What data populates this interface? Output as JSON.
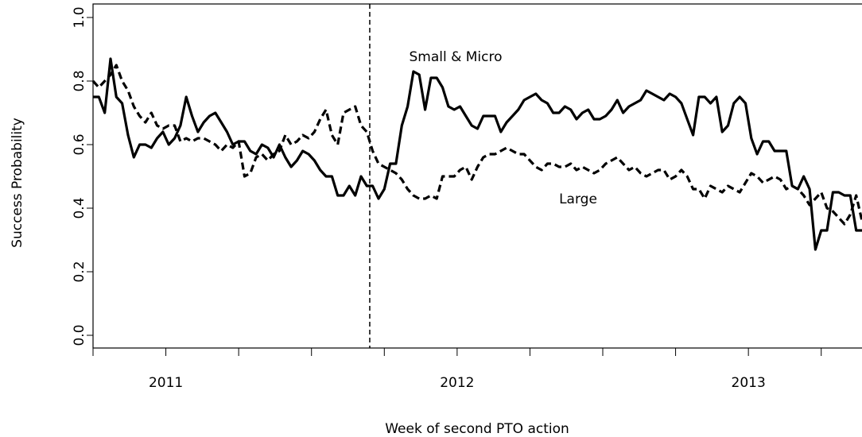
{
  "chart_data": {
    "type": "line",
    "ylabel": "Success Probability",
    "xlabel": "Week of second PTO action",
    "xlim": [
      2010.75,
      2013.39
    ],
    "xticks": [
      2011,
      2012,
      2013
    ],
    "xminorticks": [
      2010.75,
      2011.25,
      2011.5,
      2011.75,
      2012.25,
      2012.5,
      2012.75,
      2013.25
    ],
    "ylim": [
      0,
      1
    ],
    "yticks": [
      {
        "value": 0,
        "label": "0.0"
      },
      {
        "value": 0.2,
        "label": "0.2"
      },
      {
        "value": 0.4,
        "label": "0.4"
      },
      {
        "value": 0.6,
        "label": "0.6"
      },
      {
        "value": 0.8,
        "label": "0.8"
      },
      {
        "value": 1,
        "label": "1.0"
      }
    ],
    "vline": 2011.7,
    "annotations": [
      "Small & Micro",
      "Large"
    ],
    "x": [
      2010.75,
      2010.77,
      2010.79,
      2010.81,
      2010.83,
      2010.85,
      2010.87,
      2010.89,
      2010.91,
      2010.93,
      2010.95,
      2010.97,
      2010.99,
      2011.01,
      2011.03,
      2011.05,
      2011.07,
      2011.09,
      2011.11,
      2011.13,
      2011.15,
      2011.17,
      2011.19,
      2011.21,
      2011.23,
      2011.25,
      2011.27,
      2011.29,
      2011.31,
      2011.33,
      2011.35,
      2011.37,
      2011.39,
      2011.41,
      2011.43,
      2011.45,
      2011.47,
      2011.49,
      2011.51,
      2011.53,
      2011.55,
      2011.57,
      2011.59,
      2011.61,
      2011.63,
      2011.65,
      2011.67,
      2011.69,
      2011.71,
      2011.73,
      2011.75,
      2011.77,
      2011.79,
      2011.81,
      2011.83,
      2011.85,
      2011.87,
      2011.89,
      2011.91,
      2011.93,
      2011.95,
      2011.97,
      2011.99,
      2012.01,
      2012.03,
      2012.05,
      2012.07,
      2012.09,
      2012.11,
      2012.13,
      2012.15,
      2012.17,
      2012.19,
      2012.21,
      2012.23,
      2012.25,
      2012.27,
      2012.29,
      2012.31,
      2012.33,
      2012.35,
      2012.37,
      2012.39,
      2012.41,
      2012.43,
      2012.45,
      2012.47,
      2012.49,
      2012.51,
      2012.53,
      2012.55,
      2012.57,
      2012.59,
      2012.61,
      2012.63,
      2012.65,
      2012.67,
      2012.69,
      2012.71,
      2012.73,
      2012.75,
      2012.77,
      2012.79,
      2012.81,
      2012.83,
      2012.85,
      2012.87,
      2012.89,
      2012.91,
      2012.93,
      2012.95,
      2012.97,
      2012.99,
      2013.01,
      2013.03,
      2013.05,
      2013.07,
      2013.09,
      2013.11,
      2013.13,
      2013.15,
      2013.17,
      2013.19,
      2013.21,
      2013.23,
      2013.25,
      2013.27,
      2013.29,
      2013.31,
      2013.33,
      2013.35,
      2013.37,
      2013.39
    ],
    "series": [
      {
        "name": "Small & Micro",
        "color": "#000000",
        "dash": false,
        "values": [
          0.75,
          0.75,
          0.7,
          0.87,
          0.75,
          0.73,
          0.63,
          0.56,
          0.6,
          0.6,
          0.59,
          0.62,
          0.64,
          0.6,
          0.62,
          0.66,
          0.75,
          0.69,
          0.64,
          0.67,
          0.69,
          0.7,
          0.67,
          0.64,
          0.6,
          0.61,
          0.61,
          0.58,
          0.57,
          0.6,
          0.59,
          0.56,
          0.6,
          0.56,
          0.53,
          0.55,
          0.58,
          0.57,
          0.55,
          0.52,
          0.5,
          0.5,
          0.44,
          0.44,
          0.47,
          0.44,
          0.5,
          0.47,
          0.47,
          0.43,
          0.46,
          0.54,
          0.54,
          0.66,
          0.72,
          0.83,
          0.82,
          0.71,
          0.81,
          0.81,
          0.78,
          0.72,
          0.71,
          0.72,
          0.69,
          0.66,
          0.65,
          0.69,
          0.69,
          0.69,
          0.64,
          0.67,
          0.69,
          0.71,
          0.74,
          0.75,
          0.76,
          0.74,
          0.73,
          0.7,
          0.7,
          0.72,
          0.71,
          0.68,
          0.7,
          0.71,
          0.68,
          0.68,
          0.69,
          0.71,
          0.74,
          0.7,
          0.72,
          0.73,
          0.74,
          0.77,
          0.76,
          0.75,
          0.74,
          0.76,
          0.75,
          0.73,
          0.68,
          0.63,
          0.75,
          0.75,
          0.73,
          0.75,
          0.64,
          0.66,
          0.73,
          0.75,
          0.73,
          0.62,
          0.57,
          0.61,
          0.61,
          0.58,
          0.58,
          0.58,
          0.47,
          0.46,
          0.5,
          0.46,
          0.27,
          0.33,
          0.33,
          0.45,
          0.45,
          0.44,
          0.44,
          0.33,
          0.33
        ]
      },
      {
        "name": "Large",
        "color": "#000000",
        "dash": true,
        "values": [
          0.8,
          0.78,
          0.8,
          0.82,
          0.85,
          0.8,
          0.77,
          0.72,
          0.69,
          0.67,
          0.7,
          0.66,
          0.65,
          0.66,
          0.66,
          0.61,
          0.62,
          0.61,
          0.62,
          0.62,
          0.61,
          0.6,
          0.58,
          0.6,
          0.59,
          0.61,
          0.5,
          0.51,
          0.56,
          0.57,
          0.55,
          0.57,
          0.58,
          0.63,
          0.6,
          0.61,
          0.63,
          0.62,
          0.64,
          0.68,
          0.71,
          0.63,
          0.6,
          0.7,
          0.71,
          0.72,
          0.66,
          0.64,
          0.58,
          0.54,
          0.53,
          0.52,
          0.51,
          0.49,
          0.46,
          0.44,
          0.43,
          0.43,
          0.44,
          0.43,
          0.5,
          0.5,
          0.5,
          0.52,
          0.53,
          0.49,
          0.53,
          0.56,
          0.57,
          0.57,
          0.58,
          0.59,
          0.58,
          0.57,
          0.57,
          0.55,
          0.53,
          0.52,
          0.54,
          0.54,
          0.53,
          0.53,
          0.54,
          0.52,
          0.53,
          0.52,
          0.51,
          0.52,
          0.54,
          0.55,
          0.56,
          0.54,
          0.52,
          0.53,
          0.51,
          0.5,
          0.51,
          0.52,
          0.52,
          0.49,
          0.5,
          0.52,
          0.5,
          0.46,
          0.46,
          0.43,
          0.47,
          0.46,
          0.45,
          0.47,
          0.46,
          0.45,
          0.48,
          0.51,
          0.5,
          0.48,
          0.49,
          0.5,
          0.49,
          0.46,
          0.47,
          0.46,
          0.44,
          0.41,
          0.43,
          0.45,
          0.4,
          0.39,
          0.37,
          0.35,
          0.38,
          0.44,
          0.36
        ]
      }
    ]
  }
}
